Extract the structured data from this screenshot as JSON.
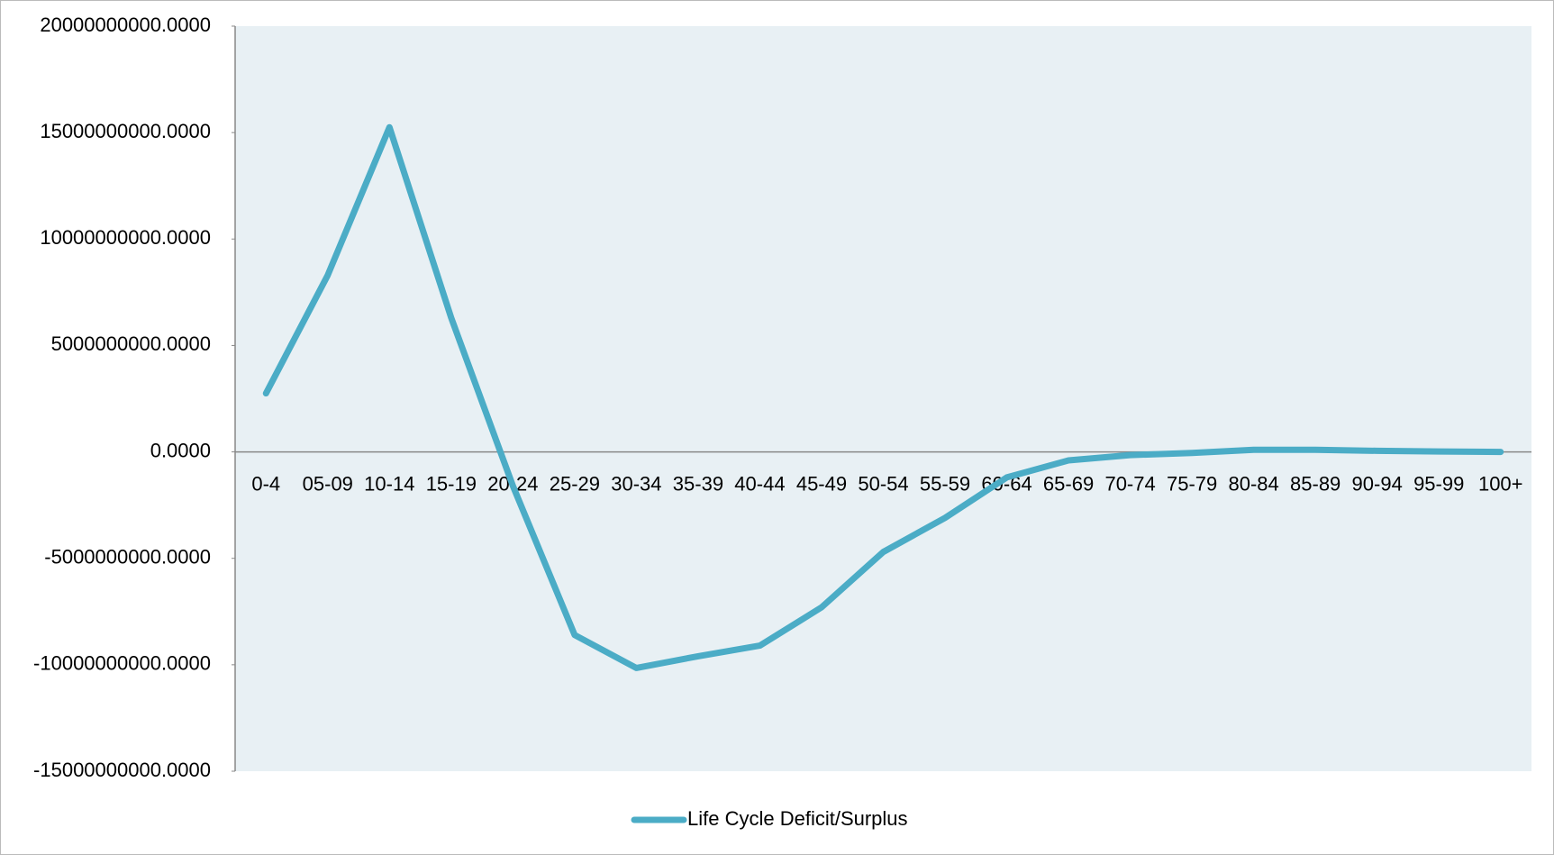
{
  "chart_data": {
    "type": "line",
    "categories": [
      "0-4",
      "05-09",
      "10-14",
      "15-19",
      "20-24",
      "25-29",
      "30-34",
      "35-39",
      "40-44",
      "45-49",
      "50-54",
      "55-59",
      "60-64",
      "65-69",
      "70-74",
      "75-79",
      "80-84",
      "85-89",
      "90-94",
      "95-99",
      "100+"
    ],
    "series": [
      {
        "name": "Life Cycle Deficit/Surplus",
        "color": "#4bacc6",
        "values": [
          2750000000,
          8300000000,
          15250000000,
          6300000000,
          -1600000000,
          -8600000000,
          -10150000000,
          -9600000000,
          -9100000000,
          -7300000000,
          -4700000000,
          -3100000000,
          -1200000000,
          -400000000,
          -150000000,
          -50000000,
          100000000,
          100000000,
          50000000,
          20000000,
          0
        ]
      }
    ],
    "ylim": [
      -15000000000,
      20000000000
    ],
    "yticks": [
      {
        "value": -15000000000,
        "label": "-15000000000.0000"
      },
      {
        "value": -10000000000,
        "label": "-10000000000.0000"
      },
      {
        "value": -5000000000,
        "label": "-5000000000.0000"
      },
      {
        "value": 0,
        "label": "0.0000"
      },
      {
        "value": 5000000000,
        "label": "5000000000.0000"
      },
      {
        "value": 10000000000,
        "label": "10000000000.0000"
      },
      {
        "value": 15000000000,
        "label": "15000000000.0000"
      },
      {
        "value": 20000000000,
        "label": "20000000000.0000"
      }
    ],
    "grid": false,
    "legend": "bottom",
    "plot_background": "#e8f0f4"
  }
}
